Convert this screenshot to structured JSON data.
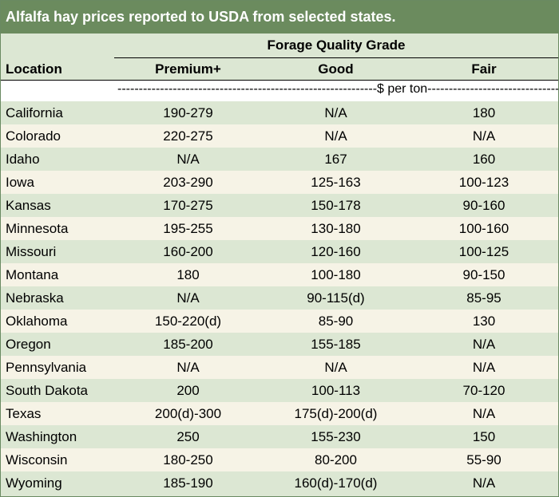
{
  "title": "Alfalfa hay prices reported to USDA from selected states.",
  "group_header": "Forage Quality Grade",
  "columns": {
    "location": "Location",
    "premium": "Premium+",
    "good": "Good",
    "fair": "Fair"
  },
  "unit_label": "-------------------------------------------------------------$ per ton-----------------------------------------------------------",
  "rows": [
    {
      "location": "California",
      "premium": "190-279",
      "good": "N/A",
      "fair": "180"
    },
    {
      "location": "Colorado",
      "premium": "220-275",
      "good": "N/A",
      "fair": "N/A"
    },
    {
      "location": "Idaho",
      "premium": "N/A",
      "good": "167",
      "fair": "160"
    },
    {
      "location": "Iowa",
      "premium": "203-290",
      "good": "125-163",
      "fair": "100-123"
    },
    {
      "location": "Kansas",
      "premium": "170-275",
      "good": "150-178",
      "fair": "90-160"
    },
    {
      "location": "Minnesota",
      "premium": "195-255",
      "good": "130-180",
      "fair": "100-160"
    },
    {
      "location": "Missouri",
      "premium": "160-200",
      "good": "120-160",
      "fair": "100-125"
    },
    {
      "location": "Montana",
      "premium": "180",
      "good": "100-180",
      "fair": "90-150"
    },
    {
      "location": "Nebraska",
      "premium": "N/A",
      "good": "90-115(d)",
      "fair": "85-95"
    },
    {
      "location": "Oklahoma",
      "premium": "150-220(d)",
      "good": "85-90",
      "fair": "130"
    },
    {
      "location": "Oregon",
      "premium": "185-200",
      "good": "155-185",
      "fair": "N/A"
    },
    {
      "location": "Pennsylvania",
      "premium": "N/A",
      "good": "N/A",
      "fair": "N/A"
    },
    {
      "location": "South Dakota",
      "premium": "200",
      "good": "100-113",
      "fair": "70-120"
    },
    {
      "location": "Texas",
      "premium": "200(d)-300",
      "good": "175(d)-200(d)",
      "fair": "N/A"
    },
    {
      "location": "Washington",
      "premium": "250",
      "good": "155-230",
      "fair": "150"
    },
    {
      "location": "Wisconsin",
      "premium": "180-250",
      "good": "80-200",
      "fair": "55-90"
    },
    {
      "location": "Wyoming",
      "premium": "185-190",
      "good": "160(d)-170(d)",
      "fair": "N/A"
    }
  ],
  "colors": {
    "title_bg": "#6b8b5e",
    "row_green": "#dce7d3",
    "row_cream": "#f6f3e6"
  }
}
